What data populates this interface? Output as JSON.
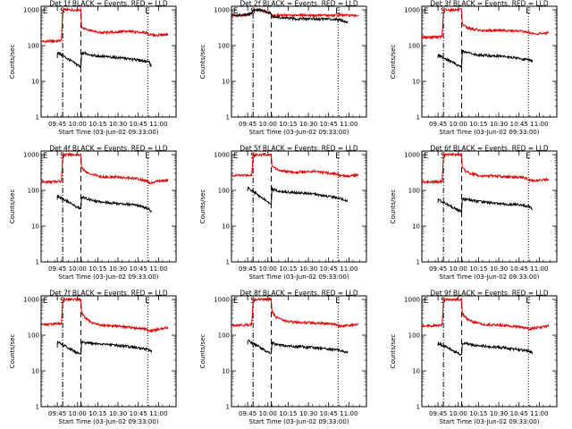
{
  "figure": {
    "colors": {
      "events": "#000000",
      "lld": "#e00000",
      "axis": "#000000",
      "background": "#ffffff"
    }
  },
  "chart_data": [
    {
      "type": "line",
      "title": "Det 1f BLACK = Events, RED = LLD",
      "xlabel": "Start Time (03-Jun-02 09:33:00)",
      "ylabel": "Counts/sec",
      "xticks": [
        "09:45",
        "10:00",
        "10:15",
        "10:30",
        "10:45",
        "11:00"
      ],
      "yticks": [
        "1",
        "10",
        "100",
        "1000"
      ],
      "xlim_minutes": [
        0,
        100
      ],
      "ylim_log10": [
        0,
        3.1
      ],
      "markers": [
        "E",
        "S",
        "E"
      ],
      "vlines": [
        {
          "x_min": 16,
          "style": "dashdot"
        },
        {
          "x_min": 29.5,
          "style": "dashed"
        },
        {
          "x_min": 79,
          "style": "dotted"
        }
      ],
      "series": [
        {
          "name": "LLD",
          "color": "#e00000",
          "x": [
            0,
            12,
            15,
            16,
            29.5,
            30,
            33,
            38,
            45,
            55,
            60,
            65,
            70,
            75,
            78,
            80,
            85,
            90,
            94
          ],
          "y": [
            130,
            135,
            140,
            1000,
            1000,
            320,
            280,
            260,
            230,
            240,
            245,
            250,
            240,
            235,
            230,
            200,
            195,
            200,
            210
          ]
        },
        {
          "name": "Events",
          "color": "#000000",
          "x": [
            12,
            12.1,
            29.5,
            30,
            33,
            40,
            50,
            60,
            70,
            75,
            80,
            82
          ],
          "y": [
            45,
            65,
            25,
            60,
            60,
            52,
            48,
            45,
            40,
            38,
            35,
            25
          ]
        }
      ]
    },
    {
      "type": "line",
      "title": "Det 2f BLACK = Events, RED = LLD",
      "xlabel": "Start Time (03-Jun-02 09:33:00)",
      "ylabel": "Counts/sec",
      "xticks": [
        "09:45",
        "10:00",
        "10:15",
        "10:30",
        "10:45",
        "11:00"
      ],
      "yticks": [
        "1",
        "10",
        "100",
        "1000"
      ],
      "xlim_minutes": [
        0,
        100
      ],
      "ylim_log10": [
        0,
        3.1
      ],
      "markers": [
        "E",
        "S",
        "E"
      ],
      "vlines": [
        {
          "x_min": 16,
          "style": "dashdot"
        },
        {
          "x_min": 29.5,
          "style": "dashed"
        },
        {
          "x_min": 79,
          "style": "dotted"
        }
      ],
      "series": [
        {
          "name": "LLD",
          "color": "#e00000",
          "x": [
            0,
            12,
            15,
            16,
            20,
            25,
            29,
            30,
            40,
            50,
            60,
            70,
            80,
            90,
            94
          ],
          "y": [
            700,
            720,
            800,
            1000,
            1000,
            900,
            800,
            700,
            700,
            700,
            700,
            700,
            700,
            700,
            700
          ]
        },
        {
          "name": "Events",
          "color": "#000000",
          "x": [
            0,
            12,
            15,
            16,
            20,
            25,
            29,
            30,
            40,
            50,
            60,
            70,
            80,
            86
          ],
          "y": [
            700,
            720,
            800,
            1000,
            1000,
            900,
            800,
            650,
            580,
            560,
            560,
            560,
            540,
            450
          ]
        }
      ]
    },
    {
      "type": "line",
      "title": "Det 3f BLACK = Events, RED = LLD",
      "xlabel": "Start Time (03-Jun-02 09:33:00)",
      "ylabel": "Counts/sec",
      "xticks": [
        "09:45",
        "10:00",
        "10:15",
        "10:30",
        "10:45",
        "11:00"
      ],
      "yticks": [
        "1",
        "10",
        "100",
        "1000"
      ],
      "xlim_minutes": [
        0,
        100
      ],
      "ylim_log10": [
        0,
        3.1
      ],
      "markers": [
        "E",
        "S",
        "E"
      ],
      "vlines": [
        {
          "x_min": 16,
          "style": "dashdot"
        },
        {
          "x_min": 29.5,
          "style": "dashed"
        },
        {
          "x_min": 79,
          "style": "dotted"
        }
      ],
      "series": [
        {
          "name": "LLD",
          "color": "#e00000",
          "x": [
            0,
            12,
            15,
            16,
            29.5,
            30,
            33,
            38,
            45,
            55,
            60,
            65,
            70,
            75,
            78,
            80,
            85,
            90,
            94
          ],
          "y": [
            170,
            175,
            180,
            1000,
            1000,
            400,
            320,
            290,
            260,
            270,
            265,
            260,
            255,
            250,
            245,
            220,
            215,
            220,
            230
          ]
        },
        {
          "name": "Events",
          "color": "#000000",
          "x": [
            12,
            12.1,
            29.5,
            30,
            33,
            40,
            50,
            60,
            70,
            75,
            80,
            82
          ],
          "y": [
            45,
            55,
            25,
            70,
            65,
            55,
            52,
            50,
            45,
            42,
            40,
            35
          ]
        }
      ]
    },
    {
      "type": "line",
      "title": "Det 4f BLACK = Events, RED = LLD",
      "xlabel": "Start Time (03-Jun-02 09:33:00)",
      "ylabel": "Counts/sec",
      "xticks": [
        "09:45",
        "10:00",
        "10:15",
        "10:30",
        "10:45",
        "11:00"
      ],
      "yticks": [
        "1",
        "10",
        "100",
        "1000"
      ],
      "xlim_minutes": [
        0,
        100
      ],
      "ylim_log10": [
        0,
        3.1
      ],
      "markers": [
        "E",
        "S",
        "E"
      ],
      "vlines": [
        {
          "x_min": 16,
          "style": "dashdot"
        },
        {
          "x_min": 29.5,
          "style": "dashed"
        },
        {
          "x_min": 79,
          "style": "dotted"
        }
      ],
      "series": [
        {
          "name": "LLD",
          "color": "#e00000",
          "x": [
            0,
            12,
            15,
            16,
            29.5,
            30,
            33,
            38,
            45,
            55,
            60,
            65,
            70,
            75,
            78,
            80,
            85,
            90,
            94
          ],
          "y": [
            170,
            175,
            180,
            1000,
            1000,
            420,
            330,
            280,
            240,
            235,
            230,
            225,
            210,
            200,
            190,
            160,
            175,
            185,
            195
          ]
        },
        {
          "name": "Events",
          "color": "#000000",
          "x": [
            12,
            12.1,
            29.5,
            30,
            33,
            40,
            50,
            60,
            70,
            75,
            80,
            82
          ],
          "y": [
            55,
            70,
            30,
            65,
            60,
            50,
            45,
            42,
            38,
            35,
            30,
            25
          ]
        }
      ]
    },
    {
      "type": "line",
      "title": "Det 5f BLACK = Events, RED = LLD",
      "xlabel": "Start Time (03-Jun-02 09:33:00)",
      "ylabel": "Counts/sec",
      "xticks": [
        "09:45",
        "10:00",
        "10:15",
        "10:30",
        "10:45",
        "11:00"
      ],
      "yticks": [
        "1",
        "10",
        "100",
        "1000"
      ],
      "xlim_minutes": [
        0,
        100
      ],
      "ylim_log10": [
        0,
        3.1
      ],
      "markers": [
        "E",
        "S",
        "E"
      ],
      "vlines": [
        {
          "x_min": 16,
          "style": "dashdot"
        },
        {
          "x_min": 29.5,
          "style": "dashed"
        },
        {
          "x_min": 79,
          "style": "dotted"
        }
      ],
      "series": [
        {
          "name": "LLD",
          "color": "#e00000",
          "x": [
            0,
            12,
            15,
            16,
            29.5,
            30,
            33,
            38,
            45,
            55,
            60,
            65,
            70,
            75,
            78,
            80,
            85,
            90,
            94
          ],
          "y": [
            260,
            265,
            270,
            1000,
            1000,
            500,
            400,
            350,
            320,
            330,
            340,
            330,
            310,
            300,
            290,
            260,
            250,
            255,
            270
          ]
        },
        {
          "name": "Events",
          "color": "#000000",
          "x": [
            12,
            12.1,
            29.5,
            30,
            33,
            40,
            50,
            60,
            70,
            75,
            80,
            86
          ],
          "y": [
            95,
            120,
            40,
            110,
            100,
            90,
            85,
            80,
            70,
            65,
            60,
            50
          ]
        }
      ]
    },
    {
      "type": "line",
      "title": "Det 6f BLACK = Events, RED = LLD",
      "xlabel": "Start Time (03-Jun-02 09:33:00)",
      "ylabel": "Counts/sec",
      "xticks": [
        "09:45",
        "10:00",
        "10:15",
        "10:30",
        "10:45",
        "11:00"
      ],
      "yticks": [
        "1",
        "10",
        "100",
        "1000"
      ],
      "xlim_minutes": [
        0,
        100
      ],
      "ylim_log10": [
        0,
        3.1
      ],
      "markers": [
        "E",
        "S",
        "E"
      ],
      "vlines": [
        {
          "x_min": 16,
          "style": "dashdot"
        },
        {
          "x_min": 29.5,
          "style": "dashed"
        },
        {
          "x_min": 79,
          "style": "dotted"
        }
      ],
      "series": [
        {
          "name": "LLD",
          "color": "#e00000",
          "x": [
            0,
            12,
            15,
            16,
            29.5,
            30,
            33,
            38,
            45,
            55,
            60,
            65,
            70,
            75,
            78,
            80,
            85,
            90,
            94
          ],
          "y": [
            170,
            175,
            180,
            1000,
            1000,
            420,
            330,
            280,
            250,
            250,
            245,
            240,
            235,
            225,
            215,
            190,
            190,
            195,
            205
          ]
        },
        {
          "name": "Events",
          "color": "#000000",
          "x": [
            12,
            12.1,
            29.5,
            30,
            33,
            40,
            50,
            60,
            70,
            75,
            80,
            82
          ],
          "y": [
            45,
            55,
            25,
            60,
            55,
            50,
            45,
            42,
            40,
            38,
            35,
            30
          ]
        }
      ]
    },
    {
      "type": "line",
      "title": "Det 7f BLACK = Events, RED = LLD",
      "xlabel": "Start Time (03-Jun-02 09:33:00)",
      "ylabel": "Counts/sec",
      "xticks": [
        "09:45",
        "10:00",
        "10:15",
        "10:30",
        "10:45",
        "11:00"
      ],
      "yticks": [
        "1",
        "10",
        "100",
        "1000"
      ],
      "xlim_minutes": [
        0,
        100
      ],
      "ylim_log10": [
        0,
        3.1
      ],
      "markers": [
        "E",
        "S",
        "E"
      ],
      "vlines": [
        {
          "x_min": 16,
          "style": "dashdot"
        },
        {
          "x_min": 29.5,
          "style": "dashed"
        },
        {
          "x_min": 79,
          "style": "dotted"
        }
      ],
      "series": [
        {
          "name": "LLD",
          "color": "#e00000",
          "x": [
            0,
            12,
            15,
            16,
            29.5,
            30,
            33,
            38,
            45,
            55,
            60,
            65,
            70,
            75,
            78,
            80,
            85,
            90,
            94
          ],
          "y": [
            200,
            205,
            210,
            1000,
            1000,
            420,
            300,
            220,
            190,
            180,
            175,
            165,
            160,
            150,
            145,
            130,
            140,
            155,
            165
          ]
        },
        {
          "name": "Events",
          "color": "#000000",
          "x": [
            12,
            12.1,
            29.5,
            30,
            33,
            40,
            50,
            60,
            70,
            75,
            80,
            82
          ],
          "y": [
            45,
            65,
            28,
            65,
            62,
            58,
            55,
            50,
            45,
            42,
            40,
            35
          ]
        }
      ]
    },
    {
      "type": "line",
      "title": "Det 8f BLACK = Events, RED = LLD",
      "xlabel": "Start Time (03-Jun-02 09:33:00)",
      "ylabel": "Counts/sec",
      "xticks": [
        "09:45",
        "10:00",
        "10:15",
        "10:30",
        "10:45",
        "11:00"
      ],
      "yticks": [
        "1",
        "10",
        "100",
        "1000"
      ],
      "xlim_minutes": [
        0,
        100
      ],
      "ylim_log10": [
        0,
        3.1
      ],
      "markers": [
        "E",
        "S",
        "E"
      ],
      "vlines": [
        {
          "x_min": 16,
          "style": "dashdot"
        },
        {
          "x_min": 29.5,
          "style": "dashed"
        },
        {
          "x_min": 79,
          "style": "dotted"
        }
      ],
      "series": [
        {
          "name": "LLD",
          "color": "#e00000",
          "x": [
            0,
            12,
            15,
            16,
            29.5,
            30,
            33,
            38,
            45,
            55,
            60,
            65,
            70,
            75,
            78,
            80,
            85,
            90,
            94
          ],
          "y": [
            190,
            195,
            200,
            1000,
            1000,
            450,
            320,
            260,
            230,
            225,
            220,
            215,
            210,
            205,
            200,
            180,
            185,
            195,
            200
          ]
        },
        {
          "name": "Events",
          "color": "#000000",
          "x": [
            12,
            12.1,
            29.5,
            30,
            33,
            40,
            50,
            60,
            70,
            75,
            80,
            86
          ],
          "y": [
            55,
            70,
            30,
            60,
            55,
            50,
            48,
            45,
            42,
            40,
            38,
            32
          ]
        }
      ]
    },
    {
      "type": "line",
      "title": "Det 9f BLACK = Events, RED = LLD",
      "xlabel": "Start Time (03-Jun-02 09:33:00)",
      "ylabel": "Counts/sec",
      "xticks": [
        "09:45",
        "10:00",
        "10:15",
        "10:30",
        "10:45",
        "11:00"
      ],
      "yticks": [
        "1",
        "10",
        "100",
        "1000"
      ],
      "xlim_minutes": [
        0,
        100
      ],
      "ylim_log10": [
        0,
        3.1
      ],
      "markers": [
        "E",
        "S",
        "E"
      ],
      "vlines": [
        {
          "x_min": 16,
          "style": "dashdot"
        },
        {
          "x_min": 29.5,
          "style": "dashed"
        },
        {
          "x_min": 79,
          "style": "dotted"
        }
      ],
      "series": [
        {
          "name": "LLD",
          "color": "#e00000",
          "x": [
            0,
            12,
            15,
            16,
            29.5,
            30,
            33,
            38,
            45,
            55,
            60,
            65,
            70,
            75,
            78,
            80,
            85,
            90,
            94
          ],
          "y": [
            180,
            185,
            190,
            1000,
            1000,
            400,
            290,
            230,
            200,
            195,
            190,
            185,
            175,
            165,
            160,
            150,
            160,
            170,
            180
          ]
        },
        {
          "name": "Events",
          "color": "#000000",
          "x": [
            12,
            12.1,
            29.5,
            30,
            33,
            40,
            50,
            60,
            70,
            75,
            80,
            82
          ],
          "y": [
            50,
            60,
            28,
            60,
            58,
            52,
            48,
            45,
            40,
            38,
            35,
            32
          ]
        }
      ]
    }
  ]
}
